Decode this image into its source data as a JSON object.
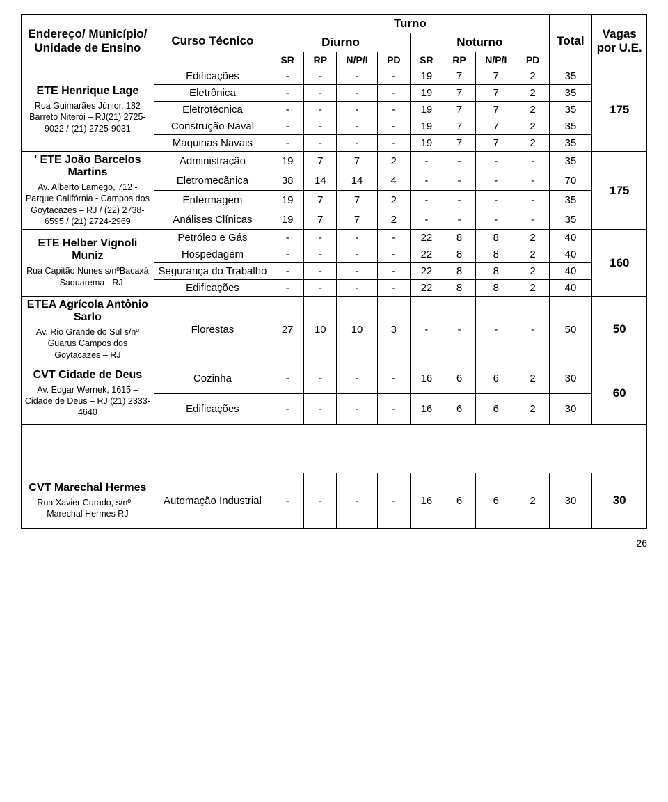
{
  "header": {
    "col_address": "Endereço/ Município/ Unidade de Ensino",
    "col_course": "Curso Técnico",
    "col_turno": "Turno",
    "col_diurno": "Diurno",
    "col_noturno": "Noturno",
    "col_total": "Total",
    "col_vagas": "Vagas por U.E.",
    "sub_sr": "SR",
    "sub_rp": "RP",
    "sub_npi": "N/P/I",
    "sub_pd": "PD"
  },
  "sections": [
    {
      "inst_name": "ETE Henrique Lage",
      "inst_addr": "Rua Guimarães Júnior, 182 Barreto Niterói – RJ(21) 2725-9022 / (21) 2725-9031",
      "rows": [
        {
          "course": "Edificações",
          "d": [
            "-",
            "-",
            "-",
            "-"
          ],
          "n": [
            "19",
            "7",
            "7",
            "2"
          ],
          "total": "35"
        },
        {
          "course": "Eletrônica",
          "d": [
            "-",
            "-",
            "-",
            "-"
          ],
          "n": [
            "19",
            "7",
            "7",
            "2"
          ],
          "total": "35"
        },
        {
          "course": "Eletrotécnica",
          "d": [
            "-",
            "-",
            "-",
            "-"
          ],
          "n": [
            "19",
            "7",
            "7",
            "2"
          ],
          "total": "35"
        },
        {
          "course": "Construção Naval",
          "d": [
            "-",
            "-",
            "-",
            "-"
          ],
          "n": [
            "19",
            "7",
            "7",
            "2"
          ],
          "total": "35"
        },
        {
          "course": "Máquinas Navais",
          "d": [
            "-",
            "-",
            "-",
            "-"
          ],
          "n": [
            "19",
            "7",
            "7",
            "2"
          ],
          "total": "35"
        }
      ],
      "vagas": "175",
      "inst_row_start": 1,
      "inst_row_span": 3
    },
    {
      "inst_name": "' ETE João Barcelos Martins",
      "inst_addr": "Av. Alberto Lamego, 712 -Parque Califórnia - Campos dos Goytacazes – RJ / (22) 2738-6595 / (21) 2724-2969",
      "rows": [
        {
          "course": "Administração",
          "d": [
            "19",
            "7",
            "7",
            "2"
          ],
          "n": [
            "-",
            "-",
            "-",
            "-"
          ],
          "total": "35"
        },
        {
          "course": "Eletromecânica",
          "d": [
            "38",
            "14",
            "14",
            "4"
          ],
          "n": [
            "-",
            "-",
            "-",
            "-"
          ],
          "total": "70"
        },
        {
          "course": "Enfermagem",
          "d": [
            "19",
            "7",
            "7",
            "2"
          ],
          "n": [
            "-",
            "-",
            "-",
            "-"
          ],
          "total": "35"
        },
        {
          "course": "Análises Clínicas",
          "d": [
            "19",
            "7",
            "7",
            "2"
          ],
          "n": [
            "-",
            "-",
            "-",
            "-"
          ],
          "total": "35"
        }
      ],
      "vagas": "175"
    },
    {
      "inst_name": "ETE Helber Vignoli Muniz",
      "inst_addr": "Rua Capitão Nunes s/nºBacaxá – Saquarema - RJ",
      "rows": [
        {
          "course": "Petróleo e Gás",
          "d": [
            "-",
            "-",
            "-",
            "-"
          ],
          "n": [
            "22",
            "8",
            "8",
            "2"
          ],
          "total": "40"
        },
        {
          "course": "Hospedagem",
          "d": [
            "-",
            "-",
            "-",
            "-"
          ],
          "n": [
            "22",
            "8",
            "8",
            "2"
          ],
          "total": "40"
        },
        {
          "course": "Segurança do Trabalho",
          "d": [
            "-",
            "-",
            "-",
            "-"
          ],
          "n": [
            "22",
            "8",
            "8",
            "2"
          ],
          "total": "40"
        },
        {
          "course": "Edificações",
          "d": [
            "-",
            "-",
            "-",
            "-"
          ],
          "n": [
            "22",
            "8",
            "8",
            "2"
          ],
          "total": "40"
        }
      ],
      "vagas": "160"
    },
    {
      "inst_name": "ETEA Agrícola Antônio Sarlo",
      "inst_addr": "Av. Rio Grande do Sul s/nº Guarus Campos dos Goytacazes – RJ",
      "rows": [
        {
          "course": "Florestas",
          "d": [
            "27",
            "10",
            "10",
            "3"
          ],
          "n": [
            "-",
            "-",
            "-",
            "-"
          ],
          "total": "50"
        }
      ],
      "vagas": "50"
    },
    {
      "inst_name": "CVT Cidade de Deus",
      "inst_addr": "Av. Edgar Wernek, 1615 – Cidade de Deus – RJ (21) 2333-4640",
      "rows": [
        {
          "course": "Cozinha",
          "d": [
            "-",
            "-",
            "-",
            "-"
          ],
          "n": [
            "16",
            "6",
            "6",
            "2"
          ],
          "total": "30"
        },
        {
          "course": "Edificações",
          "d": [
            "-",
            "-",
            "-",
            "-"
          ],
          "n": [
            "16",
            "6",
            "6",
            "2"
          ],
          "total": "30"
        }
      ],
      "vagas": "60"
    },
    {
      "inst_name": "CVT Marechal Hermes",
      "inst_addr": "Rua Xavier Curado, s/nº – Marechal Hermes RJ",
      "rows": [
        {
          "course": "Automação Industrial",
          "d": [
            "-",
            "-",
            "-",
            "-"
          ],
          "n": [
            "16",
            "6",
            "6",
            "2"
          ],
          "total": "30"
        }
      ],
      "vagas": "30"
    }
  ],
  "page_number": "26"
}
